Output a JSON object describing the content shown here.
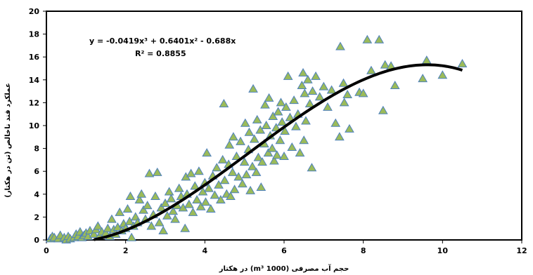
{
  "chart_data": {
    "type": "scatter",
    "title": "",
    "xlabel": "حجم آب مصرفی (1000 m³)  در هکتار",
    "ylabel": "عملکرد قند ناخالص (تن در هکتار)",
    "xlim": [
      0,
      12
    ],
    "ylim": [
      0,
      20
    ],
    "xticks": [
      0,
      2,
      4,
      6,
      8,
      10,
      12
    ],
    "yticks": [
      0,
      2,
      4,
      6,
      8,
      10,
      12,
      14,
      16,
      18,
      20
    ],
    "grid": false,
    "marker": {
      "shape": "triangle",
      "fill": "#9bbb59",
      "stroke": "#4f81bd"
    },
    "trendline": {
      "kind": "polynomial",
      "equation": "y = -0.0419x³ + 0.6401x² - 0.688x",
      "r_squared": "R² = 0.8855",
      "coefficients": {
        "a3": -0.0419,
        "a2": 0.6401,
        "a1": -0.688,
        "a0": 0
      },
      "x_range": [
        1.2,
        10.5
      ],
      "color": "#000000"
    },
    "series": [
      {
        "points": [
          [
            0.1,
            0.1
          ],
          [
            0.15,
            0.3
          ],
          [
            0.2,
            0.2
          ],
          [
            0.3,
            0.1
          ],
          [
            0.35,
            0.4
          ],
          [
            0.45,
            0.2
          ],
          [
            0.5,
            0.0
          ],
          [
            0.55,
            0.3
          ],
          [
            0.6,
            0.1
          ],
          [
            0.7,
            0.2
          ],
          [
            0.75,
            0.5
          ],
          [
            0.8,
            0.3
          ],
          [
            0.85,
            0.7
          ],
          [
            0.9,
            0.2
          ],
          [
            0.95,
            0.4
          ],
          [
            1.0,
            0.6
          ],
          [
            1.05,
            0.3
          ],
          [
            1.1,
            0.8
          ],
          [
            1.2,
            0.5
          ],
          [
            1.25,
            0.9
          ],
          [
            1.3,
            1.2
          ],
          [
            1.35,
            0.4
          ],
          [
            1.4,
            0.7
          ],
          [
            1.5,
            0.6
          ],
          [
            1.55,
            1.0
          ],
          [
            1.6,
            0.3
          ],
          [
            1.65,
            1.8
          ],
          [
            1.7,
            0.9
          ],
          [
            1.75,
            0.5
          ],
          [
            1.8,
            1.1
          ],
          [
            1.85,
            2.4
          ],
          [
            1.9,
            0.8
          ],
          [
            1.95,
            1.4
          ],
          [
            2.0,
            1.0
          ],
          [
            2.05,
            2.7
          ],
          [
            2.1,
            1.6
          ],
          [
            2.12,
            3.8
          ],
          [
            2.15,
            0.2
          ],
          [
            2.2,
            1.2
          ],
          [
            2.25,
            2.0
          ],
          [
            2.3,
            1.5
          ],
          [
            2.35,
            3.5
          ],
          [
            2.4,
            4.0
          ],
          [
            2.45,
            2.6
          ],
          [
            2.5,
            1.8
          ],
          [
            2.55,
            3.0
          ],
          [
            2.6,
            5.8
          ],
          [
            2.65,
            1.2
          ],
          [
            2.7,
            2.2
          ],
          [
            2.75,
            3.8
          ],
          [
            2.8,
            5.9
          ],
          [
            2.85,
            1.5
          ],
          [
            2.9,
            2.8
          ],
          [
            2.95,
            0.8
          ],
          [
            3.0,
            3.2
          ],
          [
            3.05,
            2.1
          ],
          [
            3.1,
            4.2
          ],
          [
            3.15,
            3.6
          ],
          [
            3.2,
            2.5
          ],
          [
            3.25,
            1.8
          ],
          [
            3.3,
            3.0
          ],
          [
            3.35,
            4.5
          ],
          [
            3.4,
            3.8
          ],
          [
            3.45,
            2.8
          ],
          [
            3.5,
            1.0
          ],
          [
            3.52,
            5.5
          ],
          [
            3.55,
            4.0
          ],
          [
            3.6,
            3.1
          ],
          [
            3.65,
            5.8
          ],
          [
            3.7,
            2.4
          ],
          [
            3.75,
            4.7
          ],
          [
            3.8,
            3.5
          ],
          [
            3.85,
            6.0
          ],
          [
            3.9,
            2.9
          ],
          [
            3.95,
            4.2
          ],
          [
            4.0,
            5.0
          ],
          [
            4.02,
            3.3
          ],
          [
            4.05,
            7.6
          ],
          [
            4.1,
            4.5
          ],
          [
            4.15,
            2.7
          ],
          [
            4.2,
            5.6
          ],
          [
            4.25,
            3.9
          ],
          [
            4.3,
            6.3
          ],
          [
            4.35,
            4.8
          ],
          [
            4.4,
            3.5
          ],
          [
            4.45,
            7.0
          ],
          [
            4.48,
            11.9
          ],
          [
            4.5,
            5.2
          ],
          [
            4.55,
            4.0
          ],
          [
            4.6,
            6.6
          ],
          [
            4.62,
            8.3
          ],
          [
            4.65,
            3.8
          ],
          [
            4.7,
            5.9
          ],
          [
            4.72,
            9.0
          ],
          [
            4.75,
            4.4
          ],
          [
            4.8,
            7.3
          ],
          [
            4.85,
            5.5
          ],
          [
            4.9,
            8.6
          ],
          [
            4.95,
            4.9
          ],
          [
            5.0,
            6.8
          ],
          [
            5.02,
            10.2
          ],
          [
            5.05,
            5.7
          ],
          [
            5.1,
            7.9
          ],
          [
            5.12,
            9.4
          ],
          [
            5.15,
            4.3
          ],
          [
            5.2,
            6.4
          ],
          [
            5.22,
            13.2
          ],
          [
            5.25,
            8.8
          ],
          [
            5.3,
            5.9
          ],
          [
            5.32,
            10.5
          ],
          [
            5.35,
            7.2
          ],
          [
            5.4,
            9.6
          ],
          [
            5.42,
            4.6
          ],
          [
            5.45,
            6.8
          ],
          [
            5.5,
            8.4
          ],
          [
            5.52,
            11.8
          ],
          [
            5.55,
            10.0
          ],
          [
            5.6,
            7.6
          ],
          [
            5.62,
            12.4
          ],
          [
            5.65,
            9.1
          ],
          [
            5.7,
            8.0
          ],
          [
            5.72,
            10.8
          ],
          [
            5.75,
            6.9
          ],
          [
            5.8,
            9.8
          ],
          [
            5.82,
            7.4
          ],
          [
            5.85,
            11.2
          ],
          [
            5.9,
            8.7
          ],
          [
            5.92,
            12.0
          ],
          [
            5.95,
            10.3
          ],
          [
            6.0,
            7.3
          ],
          [
            6.02,
            9.5
          ],
          [
            6.05,
            11.6
          ],
          [
            6.1,
            14.3
          ],
          [
            6.15,
            10.7
          ],
          [
            6.2,
            8.1
          ],
          [
            6.25,
            12.2
          ],
          [
            6.3,
            9.9
          ],
          [
            6.35,
            11.0
          ],
          [
            6.4,
            7.6
          ],
          [
            6.45,
            13.5
          ],
          [
            6.48,
            14.6
          ],
          [
            6.5,
            8.7
          ],
          [
            6.52,
            12.8
          ],
          [
            6.55,
            10.4
          ],
          [
            6.6,
            14.0
          ],
          [
            6.65,
            11.9
          ],
          [
            6.7,
            6.3
          ],
          [
            6.72,
            13.0
          ],
          [
            6.8,
            14.3
          ],
          [
            6.9,
            12.5
          ],
          [
            7.0,
            13.4
          ],
          [
            7.1,
            11.6
          ],
          [
            7.2,
            13.1
          ],
          [
            7.3,
            10.2
          ],
          [
            7.4,
            9.0
          ],
          [
            7.42,
            16.9
          ],
          [
            7.5,
            13.7
          ],
          [
            7.52,
            12.0
          ],
          [
            7.6,
            12.7
          ],
          [
            7.65,
            9.7
          ],
          [
            7.9,
            12.9
          ],
          [
            8.0,
            12.8
          ],
          [
            8.1,
            17.5
          ],
          [
            8.2,
            14.8
          ],
          [
            8.4,
            17.5
          ],
          [
            8.5,
            11.3
          ],
          [
            8.55,
            15.3
          ],
          [
            8.7,
            15.2
          ],
          [
            8.8,
            13.5
          ],
          [
            9.5,
            14.1
          ],
          [
            9.6,
            15.7
          ],
          [
            10.0,
            14.4
          ],
          [
            10.5,
            15.4
          ]
        ]
      }
    ]
  }
}
